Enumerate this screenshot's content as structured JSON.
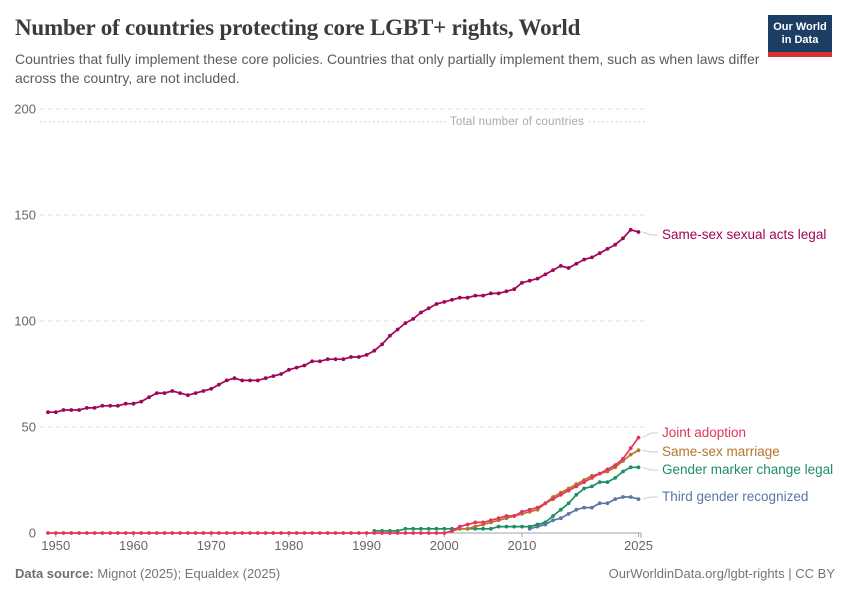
{
  "logo": {
    "line1": "Our World",
    "line2": "in Data"
  },
  "footer": {
    "source_label": "Data source:",
    "source_text": " Mignot (2025); Equaldex (2025)",
    "right_text": "OurWorldinData.org/lgbt-rights | CC BY"
  },
  "chart_data": {
    "type": "line",
    "title": "Number of countries protecting core LGBT+ rights, World",
    "subtitle": "Countries that fully implement these core policies. Countries that only partially implement them, such as when laws differ across the country, are not included.",
    "xlim": [
      1949,
      2025
    ],
    "ylim": [
      0,
      200
    ],
    "xticks": [
      1950,
      1960,
      1970,
      1980,
      1990,
      2000,
      2010,
      2025
    ],
    "yticks": [
      0,
      50,
      100,
      150,
      200
    ],
    "grid": "dashed-horizontal",
    "legend_position": "right-line-labels",
    "annotation": {
      "label": "Total number of countries",
      "value": 194
    },
    "series": [
      {
        "name": "Same-sex sexual acts legal",
        "color": "#a1045a",
        "first_year": 1949,
        "values": [
          57,
          57,
          58,
          58,
          58,
          59,
          59,
          60,
          60,
          60,
          61,
          61,
          62,
          64,
          66,
          66,
          67,
          66,
          65,
          66,
          67,
          68,
          70,
          72,
          73,
          72,
          72,
          72,
          73,
          74,
          75,
          77,
          78,
          79,
          81,
          81,
          82,
          82,
          82,
          83,
          83,
          84,
          86,
          89,
          93,
          96,
          99,
          101,
          104,
          106,
          108,
          109,
          110,
          111,
          111,
          112,
          112,
          113,
          113,
          114,
          115,
          118,
          119,
          120,
          122,
          124,
          126,
          125,
          127,
          129,
          130,
          132,
          134,
          136,
          139,
          143,
          142
        ]
      },
      {
        "name": "Joint adoption",
        "color": "#e2365b",
        "first_year": 1949,
        "values": [
          0,
          0,
          0,
          0,
          0,
          0,
          0,
          0,
          0,
          0,
          0,
          0,
          0,
          0,
          0,
          0,
          0,
          0,
          0,
          0,
          0,
          0,
          0,
          0,
          0,
          0,
          0,
          0,
          0,
          0,
          0,
          0,
          0,
          0,
          0,
          0,
          0,
          0,
          0,
          0,
          0,
          0,
          0,
          0,
          0,
          0,
          0,
          0,
          0,
          0,
          0,
          0,
          1,
          3,
          4,
          5,
          5,
          6,
          7,
          8,
          8,
          10,
          11,
          12,
          14,
          16,
          18,
          20,
          22,
          24,
          26,
          28,
          30,
          32,
          35,
          40,
          45
        ]
      },
      {
        "name": "Same-sex marriage",
        "color": "#b5752b",
        "first_year": 2001,
        "values": [
          1,
          2,
          2,
          3,
          4,
          5,
          6,
          7,
          8,
          9,
          10,
          11,
          14,
          17,
          19,
          21,
          23,
          25,
          27,
          28,
          29,
          31,
          34,
          37,
          39
        ]
      },
      {
        "name": "Gender marker change legal",
        "color": "#1d8f64",
        "first_year": 1991,
        "values": [
          1,
          1,
          1,
          1,
          2,
          2,
          2,
          2,
          2,
          2,
          2,
          2,
          2,
          2,
          2,
          2,
          3,
          3,
          3,
          3,
          3,
          4,
          5,
          8,
          11,
          14,
          18,
          21,
          22,
          24,
          24,
          26,
          29,
          31,
          31
        ]
      },
      {
        "name": "Third gender recognized",
        "color": "#5877a5",
        "first_year": 2011,
        "values": [
          2,
          3,
          4,
          6,
          7,
          9,
          11,
          12,
          12,
          14,
          14,
          16,
          17,
          17,
          16
        ]
      }
    ]
  }
}
